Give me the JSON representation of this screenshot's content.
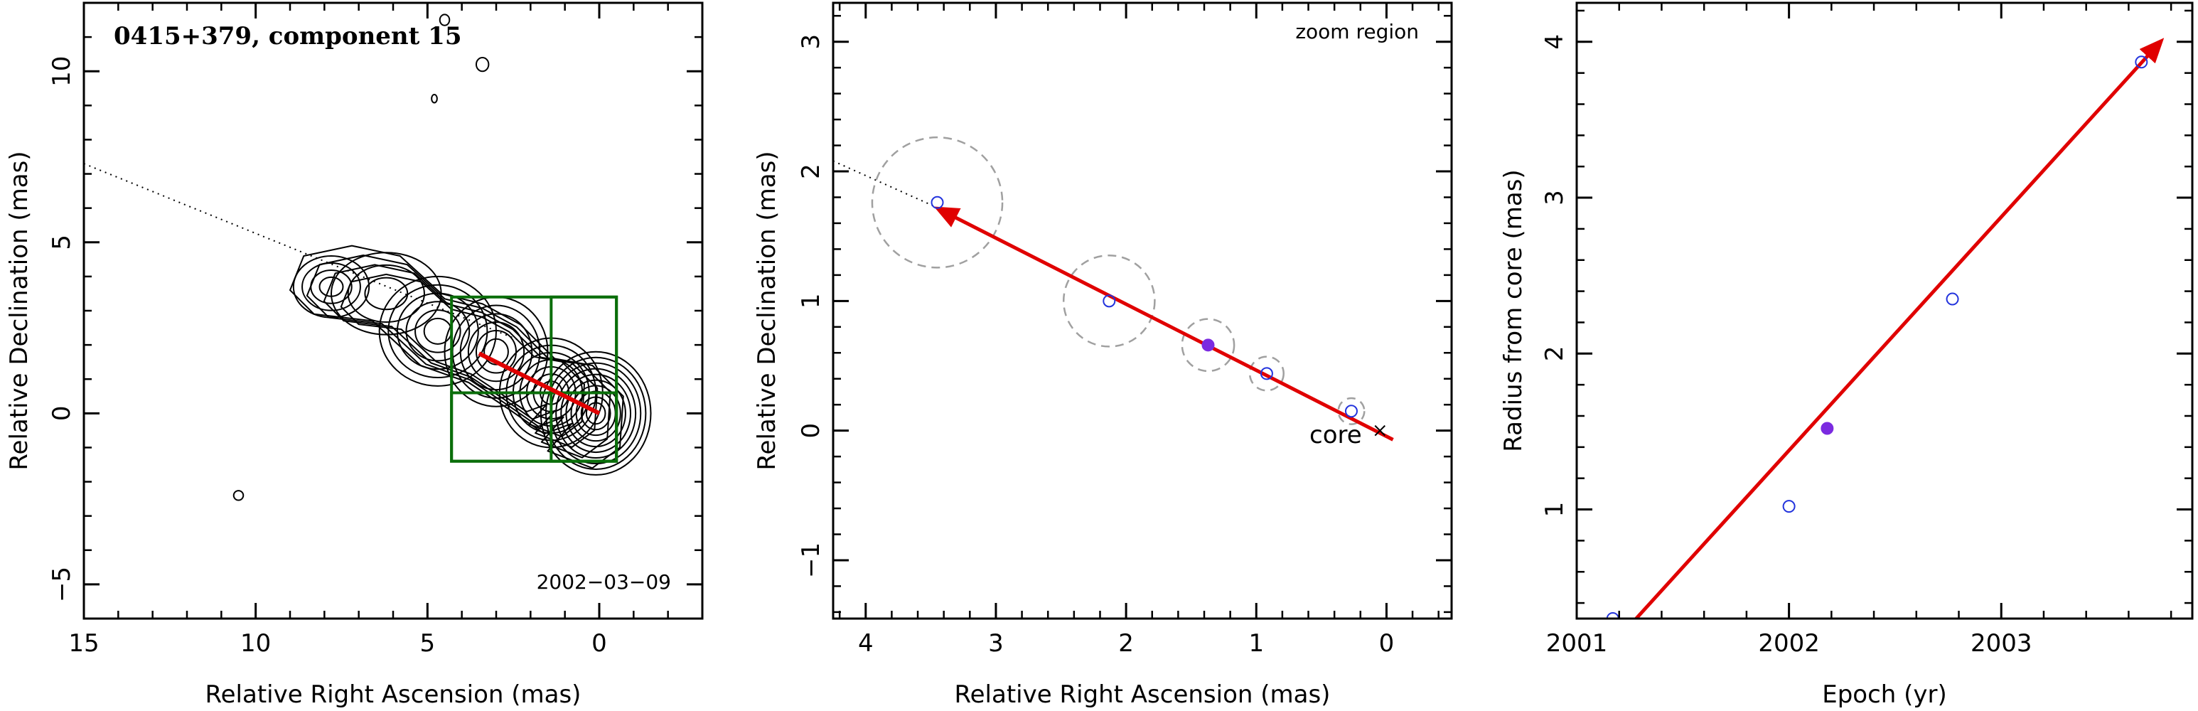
{
  "chart_data": [
    {
      "type": "contour",
      "title": "0415+379, component 15",
      "xlabel": "Relative Right Ascension (mas)",
      "ylabel": "Relative Declination (mas)",
      "xlim": [
        15,
        -3
      ],
      "ylim": [
        -6,
        12
      ],
      "xticks": [
        15,
        10,
        5,
        0
      ],
      "yticks": [
        -5,
        0,
        5,
        10
      ],
      "annotation": "2002−03−09",
      "axis_line": {
        "x": [
          15,
          2
        ],
        "y": [
          7.3,
          2.0
        ]
      },
      "velocity_arrow": {
        "from": [
          0,
          0
        ],
        "to": [
          3.5,
          1.75
        ]
      },
      "zoom_boxes": [
        {
          "x0": 4.3,
          "x1": -0.5,
          "y0": -1.4,
          "y1": 3.4
        },
        {
          "x0": 1.4,
          "x1": -0.5,
          "y0": -1.4,
          "y1": 3.4
        },
        {
          "x0": 4.3,
          "x1": -0.5,
          "y0": -1.4,
          "y1": 0.6
        }
      ],
      "blobs": [
        {
          "x": 0.1,
          "y": 0.0,
          "rx": 1.6,
          "ry": 1.8,
          "levels": 10
        },
        {
          "x": 1.4,
          "y": 0.6,
          "rx": 1.5,
          "ry": 1.6,
          "levels": 7
        },
        {
          "x": 3.0,
          "y": 1.8,
          "rx": 1.5,
          "ry": 1.6,
          "levels": 6
        },
        {
          "x": 4.7,
          "y": 2.4,
          "rx": 1.7,
          "ry": 1.6,
          "levels": 6
        },
        {
          "x": 7.8,
          "y": 3.7,
          "rx": 1.1,
          "ry": 0.9,
          "levels": 4
        },
        {
          "x": 6.2,
          "y": 3.5,
          "rx": 1.6,
          "ry": 1.2,
          "levels": 3
        },
        {
          "x": 3.4,
          "y": 10.2,
          "rx": 0.18,
          "ry": 0.2,
          "levels": 1
        },
        {
          "x": 4.5,
          "y": 11.5,
          "rx": 0.14,
          "ry": 0.16,
          "levels": 1
        },
        {
          "x": 4.8,
          "y": 9.2,
          "rx": 0.08,
          "ry": 0.12,
          "levels": 1
        },
        {
          "x": 10.5,
          "y": -2.4,
          "rx": 0.14,
          "ry": 0.14,
          "levels": 1
        }
      ]
    },
    {
      "type": "scatter",
      "annotation": "zoom region",
      "core_label": "core",
      "xlabel": "Relative Right Ascension (mas)",
      "ylabel": "Relative Declination (mas)",
      "xlim": [
        4.25,
        -0.5
      ],
      "ylim": [
        -1.45,
        3.3
      ],
      "xticks": [
        4,
        3,
        2,
        1,
        0
      ],
      "yticks": [
        -1,
        0,
        1,
        2,
        3
      ],
      "axis_line": {
        "x": [
          4.25,
          3.45
        ],
        "y": [
          2.08,
          1.72
        ]
      },
      "points": [
        {
          "x": 3.45,
          "y": 1.76,
          "err": 0.5,
          "filled": false
        },
        {
          "x": 2.13,
          "y": 1.0,
          "err": 0.35,
          "filled": false
        },
        {
          "x": 1.37,
          "y": 0.66,
          "err": 0.2,
          "filled": true
        },
        {
          "x": 0.92,
          "y": 0.44,
          "err": 0.13,
          "filled": false
        },
        {
          "x": 0.27,
          "y": 0.15,
          "err": 0.1,
          "filled": false
        }
      ],
      "core": {
        "x": 0.05,
        "y": 0.0
      },
      "velocity_arrow": {
        "from": [
          -0.05,
          -0.07
        ],
        "to": [
          3.44,
          1.71
        ]
      }
    },
    {
      "type": "scatter",
      "xlabel": "Epoch (yr)",
      "ylabel": "Radius from core (mas)",
      "xlim": [
        2001.0,
        2003.9
      ],
      "ylim": [
        0.3,
        4.25
      ],
      "xticks": [
        2001,
        2002,
        2003
      ],
      "yticks": [
        1,
        2,
        3,
        4
      ],
      "points": [
        {
          "x": 2001.17,
          "y": 0.3,
          "filled": false
        },
        {
          "x": 2002.0,
          "y": 1.02,
          "filled": false
        },
        {
          "x": 2002.18,
          "y": 1.52,
          "filled": true
        },
        {
          "x": 2002.77,
          "y": 2.35,
          "filled": false
        },
        {
          "x": 2003.66,
          "y": 3.87,
          "filled": false
        }
      ],
      "fit_arrow": {
        "from": [
          2001.28,
          0.3
        ],
        "to": [
          2003.75,
          4.0
        ]
      }
    }
  ]
}
